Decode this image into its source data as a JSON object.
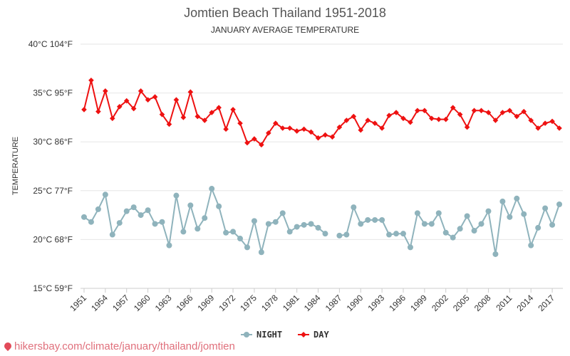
{
  "chart_data": {
    "type": "line",
    "title": "Jomtien Beach Thailand 1951-2018",
    "subtitle": "JANUARY AVERAGE TEMPERATURE",
    "ylabel": "TEMPERATURE",
    "ylim": [
      15,
      40
    ],
    "yticks": [
      {
        "value": 15,
        "label": "15°C 59°F"
      },
      {
        "value": 20,
        "label": "20°C 68°F"
      },
      {
        "value": 25,
        "label": "25°C 77°F"
      },
      {
        "value": 30,
        "label": "30°C 86°F"
      },
      {
        "value": 35,
        "label": "35°C 95°F"
      },
      {
        "value": 40,
        "label": "40°C 104°F"
      }
    ],
    "xlim": [
      1951,
      2018
    ],
    "xticks": [
      "1951",
      "1954",
      "1957",
      "1960",
      "1963",
      "1966",
      "1969",
      "1972",
      "1975",
      "1978",
      "1981",
      "1984",
      "1987",
      "1990",
      "1993",
      "1996",
      "1999",
      "2002",
      "2005",
      "2008",
      "2011",
      "2014",
      "2017"
    ],
    "grid": true,
    "legend": "bottom-center",
    "x": [
      1951,
      1952,
      1953,
      1954,
      1955,
      1956,
      1957,
      1958,
      1959,
      1960,
      1961,
      1962,
      1963,
      1964,
      1965,
      1966,
      1967,
      1968,
      1969,
      1970,
      1971,
      1972,
      1973,
      1974,
      1975,
      1976,
      1977,
      1978,
      1979,
      1980,
      1981,
      1982,
      1983,
      1984,
      1985,
      1986,
      1987,
      1988,
      1989,
      1990,
      1991,
      1992,
      1993,
      1994,
      1995,
      1996,
      1997,
      1998,
      1999,
      2000,
      2001,
      2002,
      2003,
      2004,
      2005,
      2006,
      2007,
      2008,
      2009,
      2010,
      2011,
      2012,
      2013,
      2014,
      2015,
      2016,
      2017,
      2018
    ],
    "series": [
      {
        "name": "NIGHT",
        "color": "#8fb3bc",
        "marker": "circle",
        "values": [
          22.3,
          21.8,
          23.1,
          24.6,
          20.5,
          21.7,
          22.9,
          23.3,
          22.5,
          23.0,
          21.6,
          21.8,
          19.4,
          24.5,
          20.8,
          23.5,
          21.1,
          22.2,
          25.2,
          23.4,
          20.7,
          20.8,
          20.1,
          19.2,
          21.9,
          18.7,
          21.6,
          21.8,
          22.7,
          20.8,
          21.3,
          21.5,
          21.6,
          21.2,
          20.6,
          null,
          20.4,
          20.5,
          23.3,
          21.6,
          22.0,
          22.0,
          22.0,
          20.5,
          20.6,
          20.6,
          19.2,
          22.7,
          21.6,
          21.6,
          22.7,
          20.7,
          20.2,
          21.1,
          22.4,
          20.9,
          21.6,
          22.9,
          18.5,
          23.9,
          22.3,
          24.2,
          22.6,
          19.4,
          21.2,
          23.2,
          21.5,
          23.6
        ]
      },
      {
        "name": "DAY",
        "color": "#ee1111",
        "marker": "diamond",
        "values": [
          33.3,
          36.3,
          33.1,
          35.2,
          32.4,
          33.6,
          34.2,
          33.4,
          35.2,
          34.3,
          34.6,
          32.8,
          31.8,
          34.3,
          32.5,
          35.1,
          32.6,
          32.2,
          33.0,
          33.5,
          31.3,
          33.3,
          31.9,
          29.9,
          30.3,
          29.7,
          30.9,
          31.9,
          31.4,
          31.4,
          31.1,
          31.3,
          31.0,
          30.4,
          30.7,
          30.5,
          31.5,
          32.2,
          32.6,
          31.2,
          32.2,
          31.9,
          31.4,
          32.7,
          33.0,
          32.4,
          32.0,
          33.2,
          33.2,
          32.4,
          32.3,
          32.3,
          33.5,
          32.8,
          31.5,
          33.2,
          33.2,
          33.0,
          32.2,
          33.0,
          33.2,
          32.6,
          33.1,
          32.2,
          31.4,
          31.9,
          32.1,
          31.4
        ]
      }
    ]
  },
  "footer": {
    "url": "hikersbay.com/climate/january/thailand/jomtien"
  }
}
